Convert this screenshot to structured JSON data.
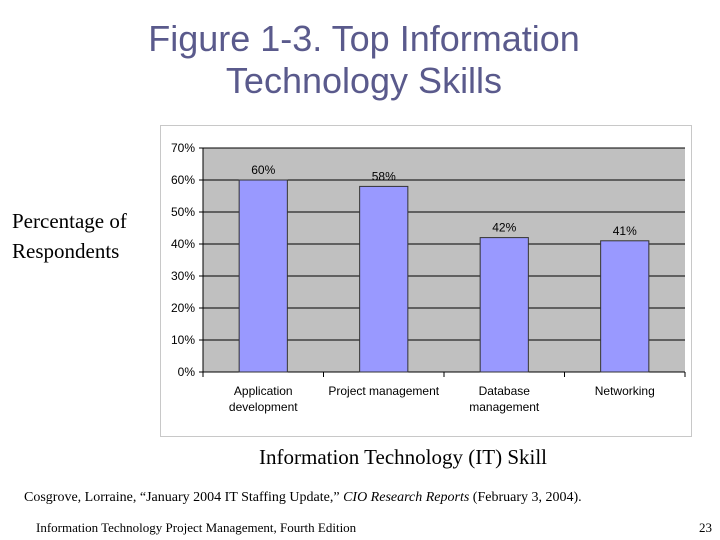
{
  "slide": {
    "title_line1": "Figure 1-3. Top Information",
    "title_line2": "Technology Skills",
    "ylabel_line1": "Percentage of",
    "ylabel_line2": "Respondents",
    "xlabel": "Information Technology (IT) Skill",
    "citation_prefix": "Cosgrove, Lorraine, “January 2004 IT Staffing Update,”",
    "citation_source": "CIO Research Reports",
    "citation_suffix": "(February 3, 2004).",
    "footer": "Information Technology Project Management, Fourth Edition",
    "page_number": "23"
  },
  "colors": {
    "title": "#5a5a8c",
    "bar_fill": "#9999ff",
    "plot_background": "#c0c0c0"
  },
  "chart_data": {
    "type": "bar",
    "categories": [
      [
        "Application",
        "development"
      ],
      [
        "Project management"
      ],
      [
        "Database",
        "management"
      ],
      [
        "Networking"
      ]
    ],
    "values": [
      60,
      58,
      42,
      41
    ],
    "data_labels": [
      "60%",
      "58%",
      "42%",
      "41%"
    ],
    "yticks": [
      "0%",
      "10%",
      "20%",
      "30%",
      "40%",
      "50%",
      "60%",
      "70%"
    ],
    "ylim": [
      0,
      70
    ],
    "grid": true,
    "legend": "none"
  }
}
